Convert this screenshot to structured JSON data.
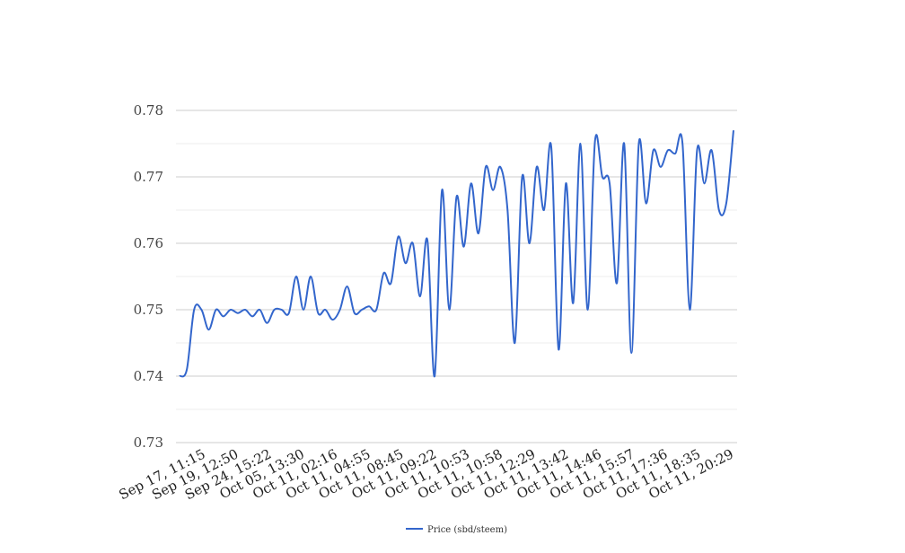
{
  "chart_data": {
    "type": "line",
    "title": "",
    "xlabel": "",
    "ylabel": "",
    "ylim": [
      0.73,
      0.78
    ],
    "y_ticks": [
      "0.73",
      "0.74",
      "0.75",
      "0.76",
      "0.77",
      "0.78"
    ],
    "y_tick_values": [
      0.73,
      0.74,
      0.75,
      0.76,
      0.77,
      0.78
    ],
    "x_tick_labels": [
      "Sep 17, 11:15",
      "Sep 19, 12:50",
      "Sep 24, 15:22",
      "Oct 05, 13:30",
      "Oct 11, 02:16",
      "Oct 11, 04:55",
      "Oct 11, 08:45",
      "Oct 11, 09:22",
      "Oct 11, 10:53",
      "Oct 11, 10:58",
      "Oct 11, 12:29",
      "Oct 11, 13:42",
      "Oct 11, 14:46",
      "Oct 11, 15:57",
      "Oct 11, 17:36",
      "Oct 11, 18:35",
      "Oct 11, 20:29"
    ],
    "grid": true,
    "legend_position": "bottom-center",
    "line_color": "#3366cc",
    "series": [
      {
        "name": "Price (sbd/steem)",
        "values": [
          0.74,
          0.741,
          0.75,
          0.75,
          0.747,
          0.75,
          0.749,
          0.75,
          0.7495,
          0.75,
          0.749,
          0.75,
          0.748,
          0.75,
          0.75,
          0.7495,
          0.755,
          0.75,
          0.755,
          0.7495,
          0.75,
          0.7485,
          0.75,
          0.7535,
          0.7495,
          0.75,
          0.7505,
          0.75,
          0.7555,
          0.754,
          0.761,
          0.757,
          0.76,
          0.752,
          0.7605,
          0.74,
          0.768,
          0.75,
          0.767,
          0.7595,
          0.769,
          0.7615,
          0.7715,
          0.768,
          0.7715,
          0.765,
          0.745,
          0.77,
          0.76,
          0.7715,
          0.765,
          0.7745,
          0.744,
          0.769,
          0.751,
          0.775,
          0.75,
          0.7755,
          0.77,
          0.769,
          0.754,
          0.775,
          0.7435,
          0.775,
          0.766,
          0.774,
          0.7715,
          0.774,
          0.7735,
          0.775,
          0.75,
          0.774,
          0.769,
          0.774,
          0.765,
          0.766,
          0.777
        ]
      }
    ]
  }
}
